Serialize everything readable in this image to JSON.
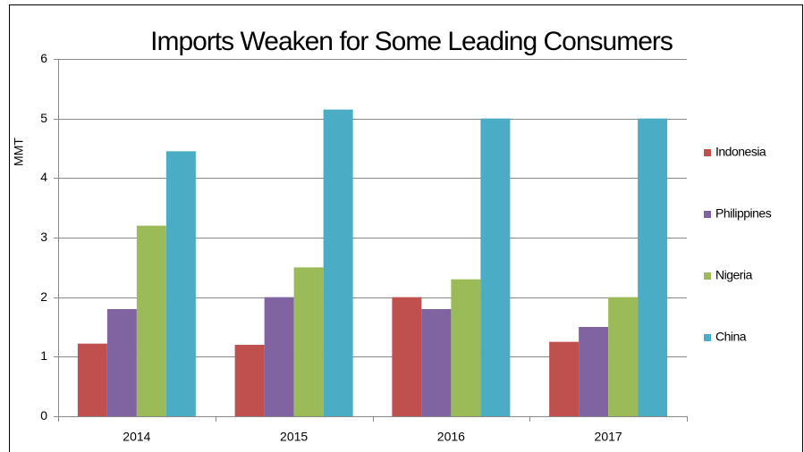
{
  "chart_data": {
    "type": "bar",
    "title": "Imports Weaken for Some Leading Consumers",
    "y_label": "MMT",
    "categories": [
      "2014",
      "2015",
      "2016",
      "2017"
    ],
    "series": [
      {
        "name": "Indonesia",
        "color": "#c0504d",
        "values": [
          1.22,
          1.2,
          2.0,
          1.25
        ]
      },
      {
        "name": "Philippines",
        "color": "#8064a2",
        "values": [
          1.8,
          2.0,
          1.8,
          1.5
        ]
      },
      {
        "name": "Nigeria",
        "color": "#9bbb59",
        "values": [
          3.2,
          2.5,
          2.3,
          2.0
        ]
      },
      {
        "name": "China",
        "color": "#4bacc6",
        "values": [
          4.45,
          5.15,
          5.0,
          5.0
        ]
      }
    ],
    "ylim": [
      0,
      6
    ],
    "yticks": [
      0,
      1,
      2,
      3,
      4,
      5,
      6
    ],
    "grid": true,
    "legend": "right"
  }
}
